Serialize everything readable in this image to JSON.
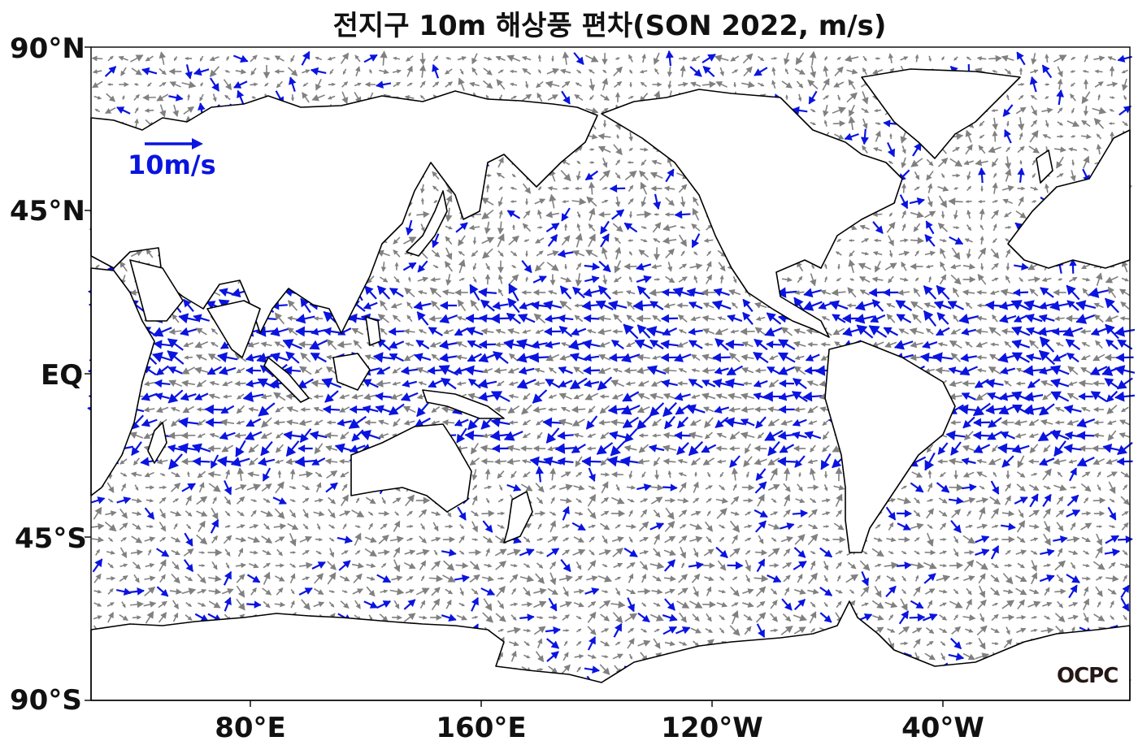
{
  "title": "전지구 10m 해상풍 편차(SON 2022, m/s)",
  "lat_labels": [
    "90°N",
    "45°N",
    "EQ",
    "45°S",
    "90°S"
  ],
  "lon_labels": [
    "80°E",
    "160°E",
    "120°W",
    "40°W"
  ],
  "reference_vector": {
    "label": "10m/s",
    "magnitude": 10,
    "color": "#0a14e0"
  },
  "logo": "OCPC",
  "colors": {
    "strong_anomaly": "#0a14e0",
    "weak_anomaly": "#808080",
    "coastline": "#000000",
    "land": "#ffffff"
  }
}
